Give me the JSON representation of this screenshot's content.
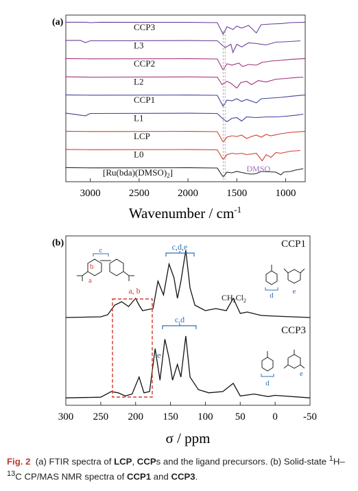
{
  "caption": {
    "fig_label": "Fig. 2",
    "part1": "(a) FTIR spectra of ",
    "lcp": "LCP",
    "comma": ", ",
    "ccp": "CCP",
    "part2": "s and the ligand precursors. (b) Solid-state ",
    "sup1": "1",
    "part3": "H–",
    "sup13": "13",
    "part4": "C CP/MAS NMR spectra of ",
    "ccp1": "CCP1",
    "and": " and ",
    "ccp3": "CCP3",
    "end": "."
  },
  "chart_data": [
    {
      "panel_label": "(a)",
      "type": "line",
      "xlabel": "Wavenumber / cm",
      "xlabel_sup": "-1",
      "xlim": [
        3250,
        800
      ],
      "x_reversed": true,
      "xticks": [
        3000,
        2500,
        2000,
        1500,
        1000
      ],
      "series": [
        {
          "name": "CCP3",
          "color": "#6a3d9a",
          "points": [
            [
              3250,
              0.02
            ],
            [
              3050,
              0.02
            ],
            [
              3000,
              0.05
            ],
            [
              2900,
              0.02
            ],
            [
              2000,
              0.03
            ],
            [
              1700,
              0.05
            ],
            [
              1640,
              0.9
            ],
            [
              1600,
              0.35
            ],
            [
              1540,
              0.55
            ],
            [
              1500,
              0.3
            ],
            [
              1450,
              0.45
            ],
            [
              1380,
              0.25
            ],
            [
              1300,
              0.8
            ],
            [
              1250,
              0.2
            ],
            [
              1150,
              0.15
            ],
            [
              1050,
              0.12
            ],
            [
              950,
              0.05
            ],
            [
              800,
              0.02
            ]
          ]
        },
        {
          "name": "L3",
          "color": "#6a3d9a",
          "points": [
            [
              3250,
              0.02
            ],
            [
              3100,
              0.02
            ],
            [
              3050,
              0.18
            ],
            [
              3000,
              0.05
            ],
            [
              2000,
              0.03
            ],
            [
              1700,
              0.05
            ],
            [
              1620,
              0.55
            ],
            [
              1560,
              0.3
            ],
            [
              1540,
              0.9
            ],
            [
              1500,
              0.3
            ],
            [
              1450,
              0.5
            ],
            [
              1380,
              0.2
            ],
            [
              1300,
              0.25
            ],
            [
              1200,
              0.35
            ],
            [
              1100,
              0.15
            ],
            [
              950,
              0.1
            ],
            [
              850,
              0.05
            ]
          ]
        },
        {
          "name": "CCP2",
          "color": "#a0307a",
          "points": [
            [
              3250,
              0.02
            ],
            [
              3000,
              0.04
            ],
            [
              2000,
              0.03
            ],
            [
              1700,
              0.05
            ],
            [
              1640,
              0.85
            ],
            [
              1600,
              0.4
            ],
            [
              1550,
              0.5
            ],
            [
              1480,
              0.35
            ],
            [
              1440,
              0.6
            ],
            [
              1380,
              0.45
            ],
            [
              1300,
              0.5
            ],
            [
              1240,
              0.3
            ],
            [
              1150,
              0.2
            ],
            [
              1050,
              0.15
            ],
            [
              950,
              0.08
            ],
            [
              800,
              0.02
            ]
          ]
        },
        {
          "name": "L2",
          "color": "#a0307a",
          "points": [
            [
              3250,
              0.02
            ],
            [
              3000,
              0.05
            ],
            [
              2000,
              0.03
            ],
            [
              1700,
              0.05
            ],
            [
              1650,
              0.6
            ],
            [
              1600,
              0.35
            ],
            [
              1560,
              0.5
            ],
            [
              1500,
              0.85
            ],
            [
              1460,
              0.45
            ],
            [
              1400,
              0.35
            ],
            [
              1350,
              0.6
            ],
            [
              1280,
              0.3
            ],
            [
              1200,
              0.4
            ],
            [
              1100,
              0.2
            ],
            [
              1000,
              0.15
            ],
            [
              900,
              0.08
            ],
            [
              820,
              0.05
            ]
          ]
        },
        {
          "name": "CCP1",
          "color": "#3b3fa0",
          "points": [
            [
              3250,
              0.02
            ],
            [
              3000,
              0.04
            ],
            [
              2000,
              0.03
            ],
            [
              1700,
              0.05
            ],
            [
              1640,
              0.85
            ],
            [
              1600,
              0.4
            ],
            [
              1550,
              0.45
            ],
            [
              1500,
              0.3
            ],
            [
              1450,
              0.5
            ],
            [
              1400,
              0.35
            ],
            [
              1300,
              0.6
            ],
            [
              1250,
              0.3
            ],
            [
              1150,
              0.25
            ],
            [
              1050,
              0.2
            ],
            [
              950,
              0.12
            ],
            [
              800,
              0.02
            ]
          ]
        },
        {
          "name": "L1",
          "color": "#3b3fa0",
          "points": [
            [
              3250,
              0.02
            ],
            [
              3050,
              0.22
            ],
            [
              3000,
              0.05
            ],
            [
              2000,
              0.03
            ],
            [
              1700,
              0.05
            ],
            [
              1640,
              0.45
            ],
            [
              1600,
              0.65
            ],
            [
              1550,
              0.4
            ],
            [
              1500,
              0.35
            ],
            [
              1450,
              0.6
            ],
            [
              1400,
              0.3
            ],
            [
              1300,
              0.35
            ],
            [
              1200,
              0.3
            ],
            [
              1100,
              0.3
            ],
            [
              1000,
              0.25
            ],
            [
              900,
              0.18
            ],
            [
              820,
              0.1
            ]
          ]
        },
        {
          "name": "LCP",
          "color": "#d23a2c",
          "points": [
            [
              3250,
              0.02
            ],
            [
              3000,
              0.04
            ],
            [
              2000,
              0.03
            ],
            [
              1700,
              0.05
            ],
            [
              1640,
              0.8
            ],
            [
              1600,
              0.45
            ],
            [
              1550,
              0.35
            ],
            [
              1500,
              0.4
            ],
            [
              1450,
              0.3
            ],
            [
              1400,
              0.55
            ],
            [
              1350,
              0.4
            ],
            [
              1300,
              0.3
            ],
            [
              1250,
              0.45
            ],
            [
              1200,
              0.25
            ],
            [
              1150,
              0.35
            ],
            [
              1050,
              0.2
            ],
            [
              950,
              0.1
            ],
            [
              800,
              0.03
            ]
          ]
        },
        {
          "name": "L0",
          "color": "#d23a2c",
          "points": [
            [
              3250,
              0.02
            ],
            [
              3000,
              0.04
            ],
            [
              2000,
              0.03
            ],
            [
              1700,
              0.05
            ],
            [
              1640,
              0.75
            ],
            [
              1600,
              0.4
            ],
            [
              1550,
              0.3
            ],
            [
              1500,
              0.35
            ],
            [
              1450,
              0.3
            ],
            [
              1400,
              0.4
            ],
            [
              1300,
              0.3
            ],
            [
              1240,
              0.85
            ],
            [
              1200,
              0.4
            ],
            [
              1150,
              0.6
            ],
            [
              1100,
              0.25
            ],
            [
              1050,
              0.3
            ],
            [
              950,
              0.15
            ],
            [
              850,
              0.1
            ]
          ]
        },
        {
          "name": "[Ru(bda)(DMSO)",
          "name_sub": "2",
          "name_end": "]",
          "color": "#222222",
          "points": [
            [
              3250,
              0.02
            ],
            [
              3000,
              0.04
            ],
            [
              2000,
              0.03
            ],
            [
              1700,
              0.05
            ],
            [
              1640,
              0.7
            ],
            [
              1600,
              0.35
            ],
            [
              1550,
              0.4
            ],
            [
              1500,
              0.3
            ],
            [
              1400,
              0.45
            ],
            [
              1350,
              0.5
            ],
            [
              1300,
              0.45
            ],
            [
              1250,
              0.3
            ],
            [
              1100,
              0.35
            ],
            [
              1050,
              0.55
            ],
            [
              1020,
              0.35
            ],
            [
              950,
              0.3
            ],
            [
              900,
              0.2
            ],
            [
              820,
              0.1
            ]
          ]
        }
      ],
      "annotations": [
        {
          "text": "DMSO",
          "color": "#9b6fc0"
        }
      ]
    },
    {
      "panel_label": "(b)",
      "type": "line",
      "xlabel": "σ / ppm",
      "xlim": [
        300,
        -50
      ],
      "x_reversed": true,
      "xticks": [
        300,
        250,
        200,
        150,
        100,
        50,
        0,
        -50
      ],
      "series": [
        {
          "name": "CCP1",
          "color": "#111111",
          "points": [
            [
              300,
              0.02
            ],
            [
              250,
              0.03
            ],
            [
              240,
              0.06
            ],
            [
              230,
              0.2
            ],
            [
              220,
              0.25
            ],
            [
              210,
              0.18
            ],
            [
              200,
              0.3
            ],
            [
              195,
              0.2
            ],
            [
              190,
              0.12
            ],
            [
              175,
              0.15
            ],
            [
              168,
              0.55
            ],
            [
              160,
              0.35
            ],
            [
              152,
              0.8
            ],
            [
              145,
              0.6
            ],
            [
              140,
              0.3
            ],
            [
              135,
              0.55
            ],
            [
              128,
              1.0
            ],
            [
              122,
              0.45
            ],
            [
              115,
              0.2
            ],
            [
              100,
              0.12
            ],
            [
              85,
              0.15
            ],
            [
              70,
              0.12
            ],
            [
              60,
              0.3
            ],
            [
              50,
              0.08
            ],
            [
              40,
              0.1
            ],
            [
              20,
              0.05
            ],
            [
              0,
              0.04
            ],
            [
              -50,
              0.02
            ]
          ]
        },
        {
          "name": "CCP3",
          "color": "#111111",
          "points": [
            [
              300,
              0.02
            ],
            [
              250,
              0.03
            ],
            [
              235,
              0.12
            ],
            [
              225,
              0.1
            ],
            [
              215,
              0.05
            ],
            [
              205,
              0.08
            ],
            [
              195,
              0.35
            ],
            [
              188,
              0.1
            ],
            [
              180,
              0.12
            ],
            [
              172,
              0.8
            ],
            [
              165,
              0.3
            ],
            [
              158,
              0.95
            ],
            [
              152,
              0.65
            ],
            [
              147,
              0.3
            ],
            [
              140,
              0.55
            ],
            [
              135,
              0.35
            ],
            [
              128,
              1.0
            ],
            [
              122,
              0.35
            ],
            [
              110,
              0.15
            ],
            [
              95,
              0.1
            ],
            [
              75,
              0.12
            ],
            [
              60,
              0.25
            ],
            [
              50,
              0.05
            ],
            [
              30,
              0.08
            ],
            [
              10,
              0.04
            ],
            [
              0,
              0.06
            ],
            [
              -50,
              0.02
            ]
          ]
        }
      ],
      "annotations": [
        {
          "text": "c,d,e",
          "color": "#2f6fb0"
        },
        {
          "text": "a, b",
          "color": "#d23a2c"
        },
        {
          "text": "c,d",
          "color": "#2f6fb0"
        },
        {
          "text": "e",
          "color": "#2f6fb0"
        },
        {
          "text": "CH",
          "sub1": "2",
          "mid": "Cl",
          "sub2": "2",
          "color": "#111111"
        },
        {
          "text": "c",
          "color": "#2f6fb0"
        },
        {
          "text": "b",
          "color": "#d23a2c"
        },
        {
          "text": "a",
          "color": "#d23a2c"
        },
        {
          "text": "d",
          "color": "#2f6fb0"
        },
        {
          "text": "e",
          "color": "#2f6fb0"
        },
        {
          "text": "d",
          "color": "#2f6fb0"
        },
        {
          "text": "e",
          "color": "#2f6fb0"
        }
      ]
    }
  ]
}
